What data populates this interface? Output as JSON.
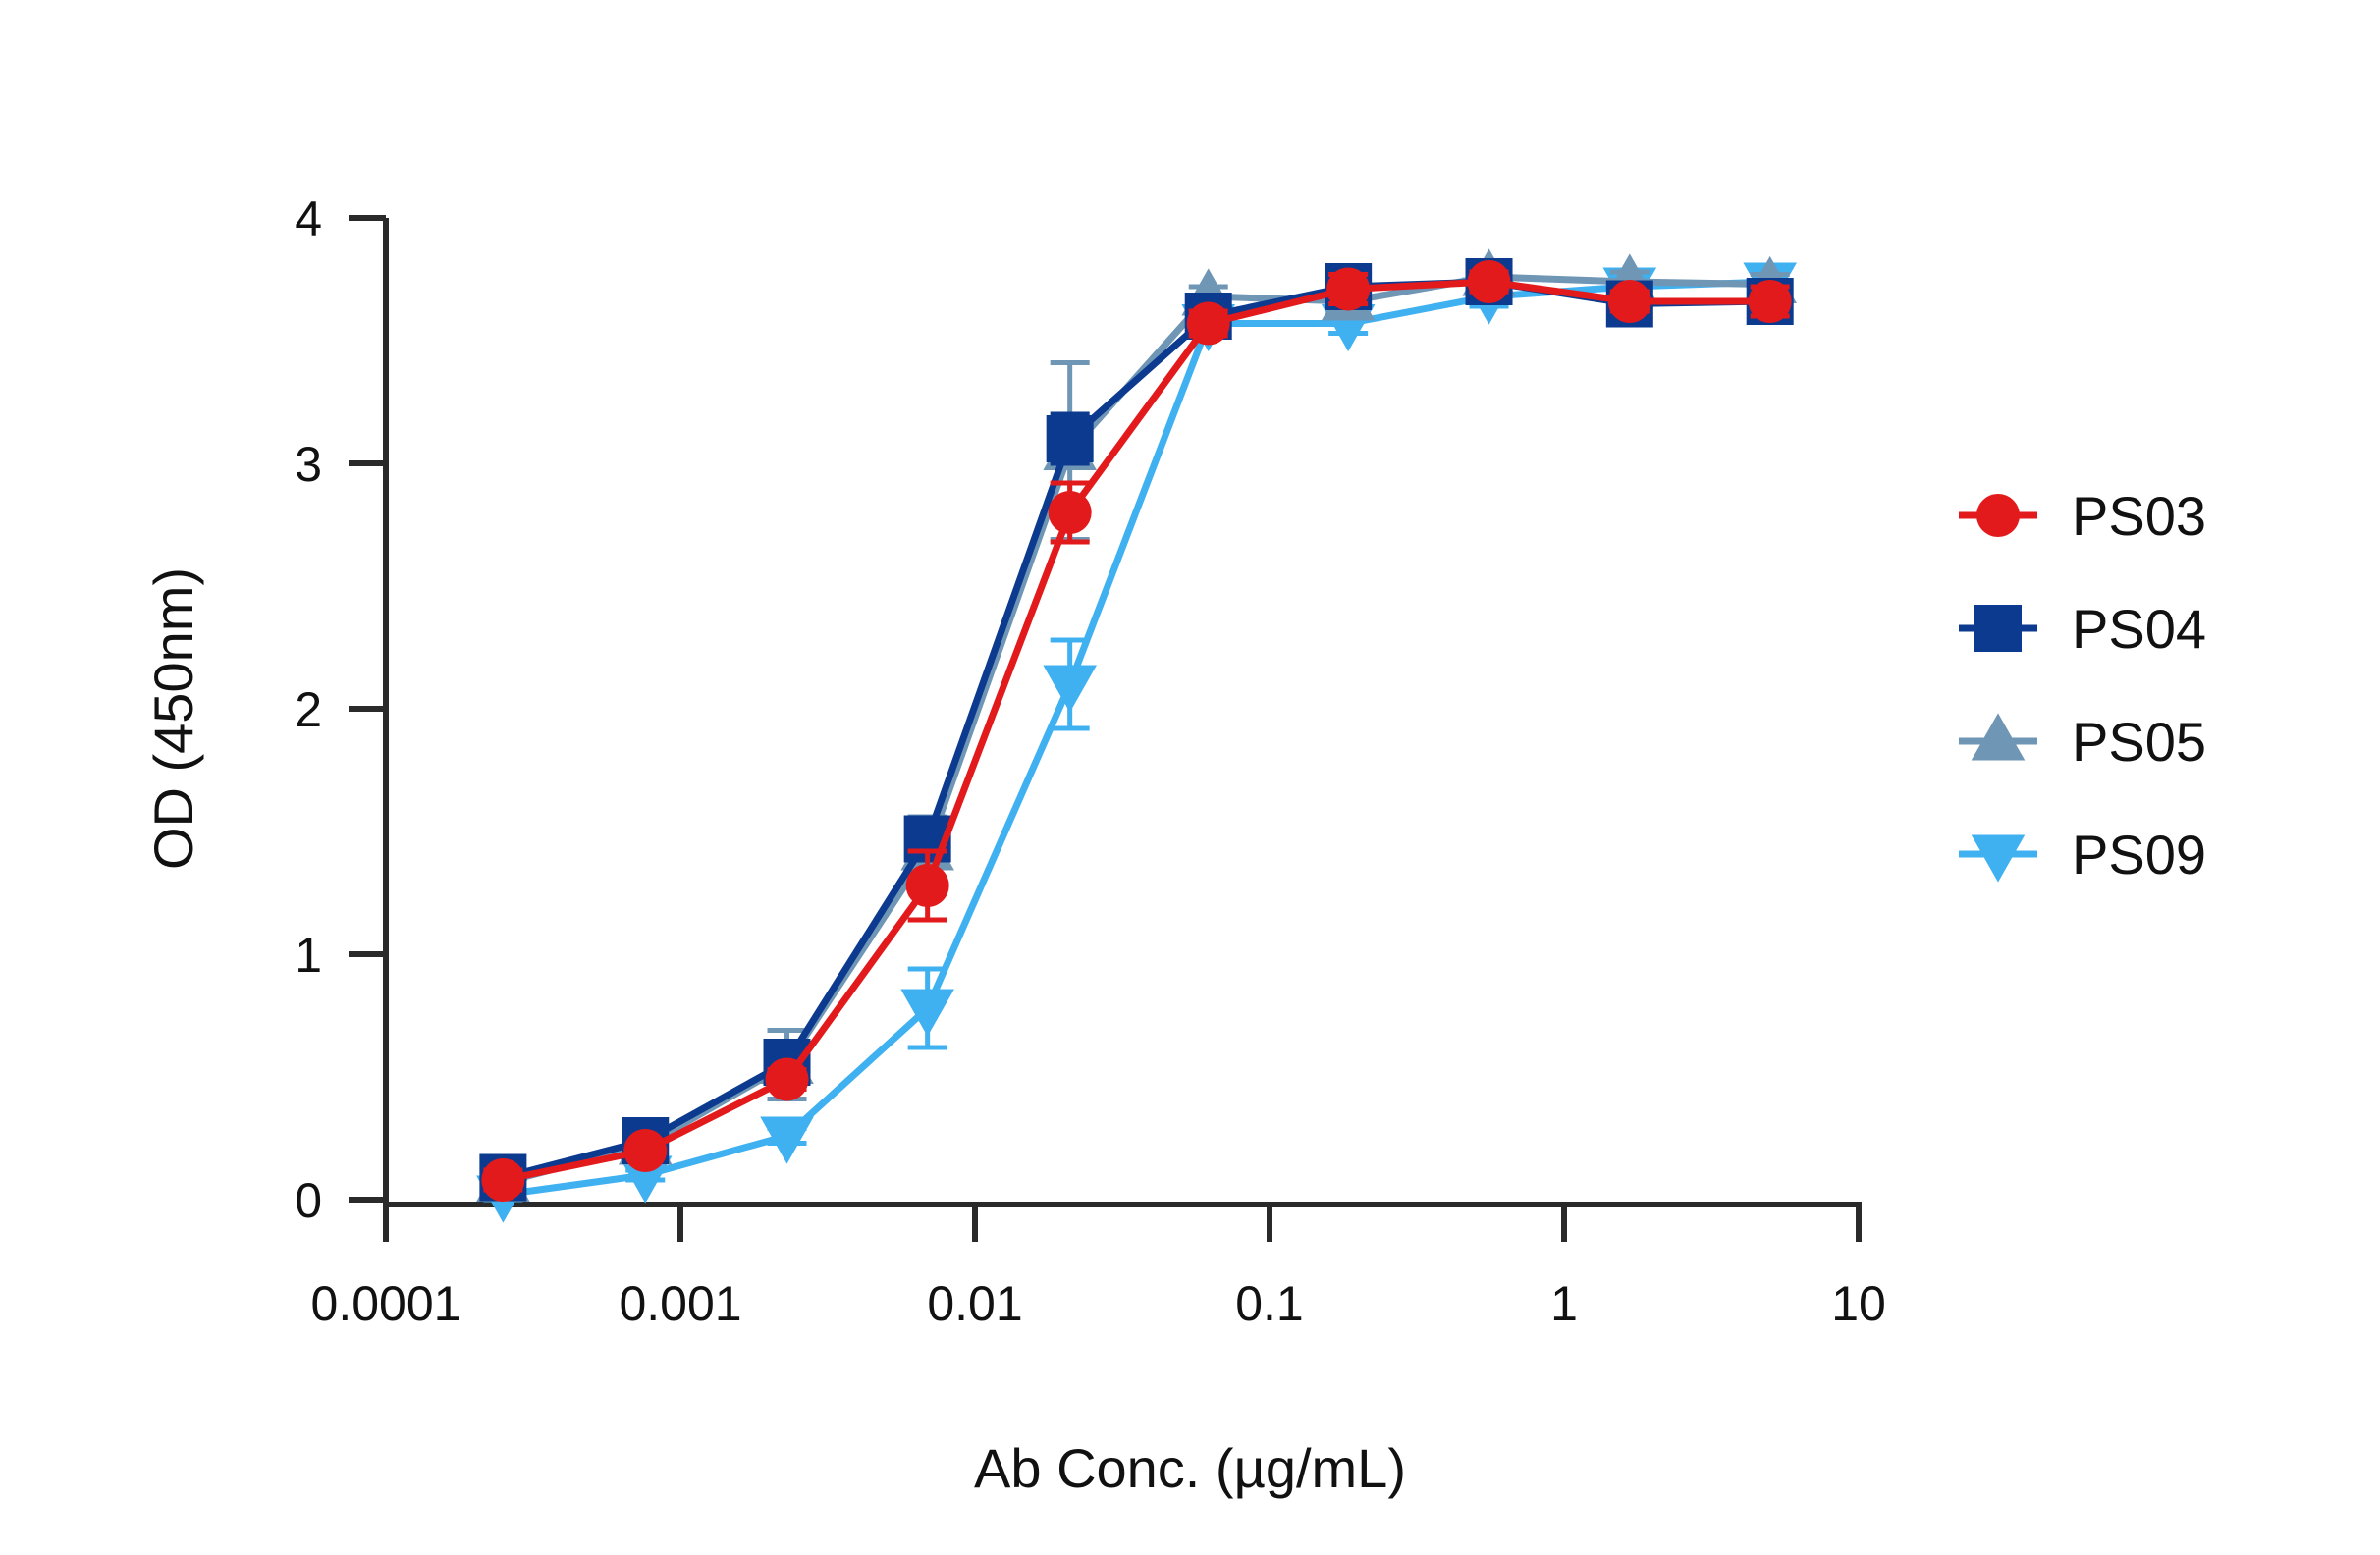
{
  "chart_data": {
    "type": "line",
    "xlabel": "Ab Conc. (µg/mL)",
    "ylabel": "OD (450nm)",
    "xscale": "log",
    "xlim": [
      0.0001,
      10
    ],
    "ylim": [
      0,
      4
    ],
    "xticks": [
      {
        "value": 0.0001,
        "label": "0.0001"
      },
      {
        "value": 0.001,
        "label": "0.001"
      },
      {
        "value": 0.01,
        "label": "0.01"
      },
      {
        "value": 0.1,
        "label": "0.1"
      },
      {
        "value": 1,
        "label": "1"
      },
      {
        "value": 10,
        "label": "10"
      }
    ],
    "yticks": [
      {
        "value": 0,
        "label": "0"
      },
      {
        "value": 1,
        "label": "1"
      },
      {
        "value": 2,
        "label": "2"
      },
      {
        "value": 3,
        "label": "3"
      },
      {
        "value": 4,
        "label": "4"
      }
    ],
    "grid": false,
    "legend_position": "right",
    "x": [
      0.00025,
      0.00076,
      0.0023,
      0.0069,
      0.021,
      0.062,
      0.185,
      0.556,
      1.67,
      5.0
    ],
    "series": [
      {
        "name": "PS03",
        "color": "#e31a1c",
        "marker": "circle",
        "values": [
          0.08,
          0.2,
          0.49,
          1.28,
          2.8,
          3.57,
          3.71,
          3.74,
          3.66,
          3.66
        ],
        "errors": [
          0.04,
          0.03,
          0.04,
          0.14,
          0.12,
          0.05,
          0.06,
          0.04,
          0.04,
          0.06
        ]
      },
      {
        "name": "PS04",
        "color": "#0b3a8f",
        "marker": "square",
        "values": [
          0.09,
          0.24,
          0.56,
          1.47,
          3.1,
          3.6,
          3.72,
          3.74,
          3.65,
          3.66
        ],
        "errors": [
          0.03,
          0.03,
          0.05,
          0.08,
          0.1,
          0.05,
          0.05,
          0.05,
          0.05,
          0.05
        ]
      },
      {
        "name": "PS05",
        "color": "#6f96b5",
        "marker": "triangle-up",
        "values": [
          0.07,
          0.22,
          0.55,
          1.42,
          3.05,
          3.68,
          3.66,
          3.76,
          3.74,
          3.73
        ],
        "errors": [
          0.03,
          0.03,
          0.14,
          0.14,
          0.36,
          0.04,
          0.04,
          0.04,
          0.04,
          0.04
        ]
      },
      {
        "name": "PS09",
        "color": "#3fb0f0",
        "marker": "triangle-down",
        "values": [
          0.02,
          0.1,
          0.26,
          0.78,
          2.1,
          3.57,
          3.57,
          3.68,
          3.72,
          3.74
        ],
        "errors": [
          0.02,
          0.02,
          0.03,
          0.16,
          0.18,
          0.04,
          0.04,
          0.04,
          0.04,
          0.04
        ]
      }
    ]
  }
}
